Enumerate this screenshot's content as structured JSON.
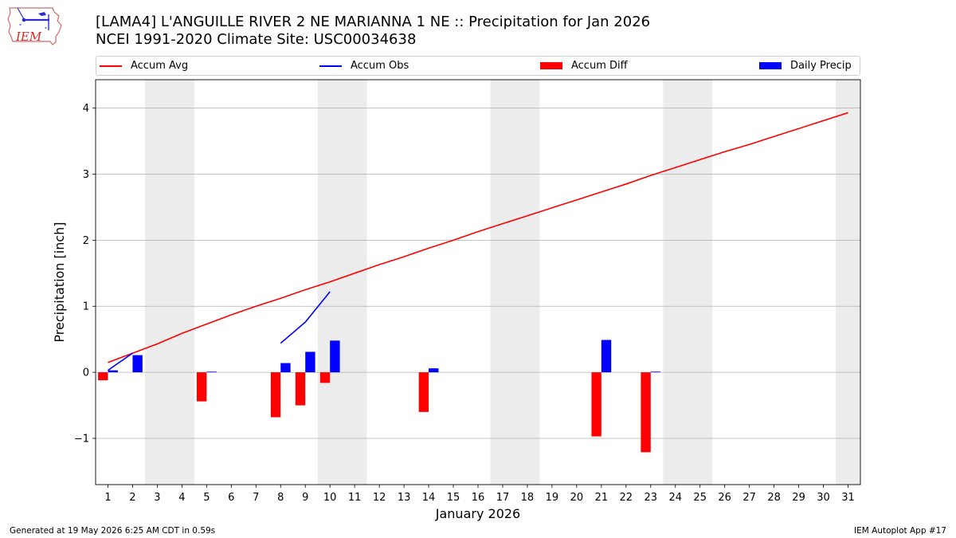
{
  "header": {
    "title_line1": "[LAMA4] L'ANGUILLE RIVER 2 NE MARIANNA 1 NE :: Precipitation for Jan 2026",
    "title_line2": "NCEI 1991-2020 Climate Site: USC00034638"
  },
  "logo": {
    "text": "IEM"
  },
  "footer": {
    "left": "Generated at 19 May 2026 6:25 AM CDT in 0.59s",
    "right": "IEM Autoplot App #17"
  },
  "colors": {
    "accum_avg": "#ff0000",
    "accum_obs": "#0000ff",
    "accum_diff": "#ff0000",
    "daily_precip": "#0000ff",
    "weekend_band": "#ececec",
    "grid": "#b0b0b0"
  },
  "chart_data": {
    "type": "bar",
    "xlabel": "January 2026",
    "ylabel": "Precipitation [inch]",
    "xlim": [
      0.5,
      31.5
    ],
    "ylim": [
      -1.7,
      4.43
    ],
    "yticks": [
      -1,
      0,
      1,
      2,
      3,
      4
    ],
    "ytick_labels": [
      "−1",
      "0",
      "1",
      "2",
      "3",
      "4"
    ],
    "x": [
      1,
      2,
      3,
      4,
      5,
      6,
      7,
      8,
      9,
      10,
      11,
      12,
      13,
      14,
      15,
      16,
      17,
      18,
      19,
      20,
      21,
      22,
      23,
      24,
      25,
      26,
      27,
      28,
      29,
      30,
      31
    ],
    "grid": "y",
    "legend": {
      "position": "top",
      "entries": [
        "Accum Avg",
        "Accum Obs",
        "Accum Diff",
        "Daily Precip"
      ]
    },
    "weekend_days": [
      3,
      4,
      10,
      11,
      17,
      18,
      24,
      25,
      31
    ],
    "series": [
      {
        "name": "Accum Avg",
        "kind": "line",
        "values": [
          0.15,
          0.29,
          0.43,
          0.59,
          0.73,
          0.87,
          1.0,
          1.12,
          1.25,
          1.37,
          1.5,
          1.63,
          1.75,
          1.88,
          2.0,
          2.13,
          2.25,
          2.37,
          2.49,
          2.61,
          2.73,
          2.85,
          2.98,
          3.1,
          3.22,
          3.34,
          3.45,
          3.57,
          3.69,
          3.81,
          3.93
        ]
      },
      {
        "name": "Accum Obs",
        "kind": "line",
        "segments": [
          {
            "x": [
              1,
              2
            ],
            "values": [
              0.03,
              0.29
            ]
          },
          {
            "x": [
              8,
              9,
              10
            ],
            "values": [
              0.44,
              0.76,
              1.22
            ]
          }
        ]
      },
      {
        "name": "Accum Diff",
        "kind": "bar",
        "x": [
          1,
          5,
          8,
          9,
          10,
          14,
          21,
          23
        ],
        "values": [
          -0.12,
          -0.44,
          -0.68,
          -0.5,
          -0.16,
          -0.6,
          -0.97,
          -1.21
        ]
      },
      {
        "name": "Daily Precip",
        "kind": "bar",
        "x": [
          1,
          2,
          5,
          8,
          9,
          10,
          14,
          21,
          23
        ],
        "values": [
          0.03,
          0.26,
          0.01,
          0.14,
          0.31,
          0.48,
          0.06,
          0.49,
          0.01
        ]
      }
    ]
  }
}
